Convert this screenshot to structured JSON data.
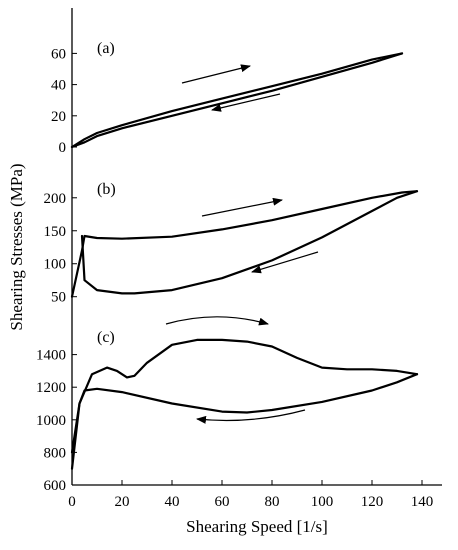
{
  "chart_data": {
    "type": "line",
    "xlabel": "Shearing Speed [1/s]",
    "ylabel": "Shearing Stresses (MPa)",
    "xlim": [
      0,
      150
    ],
    "x_ticks": [
      "0",
      "20",
      "40",
      "60",
      "80",
      "100",
      "120",
      "140"
    ],
    "grid": false,
    "panels": [
      {
        "label": "(a)",
        "ylim": [
          0,
          75
        ],
        "y_ticks": [
          "0",
          "20",
          "40",
          "60"
        ],
        "arrows": [
          "right",
          "left"
        ],
        "series": [
          {
            "direction": "increasing",
            "x": [
              0,
              5,
              10,
              20,
              40,
              60,
              80,
              100,
              120,
              132
            ],
            "y": [
              0,
              5,
              9,
              14,
              23,
              31,
              39,
              47,
              56,
              60
            ]
          },
          {
            "direction": "decreasing",
            "x": [
              132,
              120,
              100,
              80,
              60,
              40,
              20,
              10,
              5,
              0
            ],
            "y": [
              60,
              54,
              45,
              36,
              28,
              20,
              12,
              7,
              3,
              0
            ]
          }
        ]
      },
      {
        "label": "(b)",
        "ylim": [
          45,
          230
        ],
        "y_ticks": [
          "50",
          "100",
          "150",
          "200"
        ],
        "arrows": [
          "right",
          "left"
        ],
        "series": [
          {
            "direction": "increasing",
            "x": [
              0,
              4,
              5,
              10,
              20,
              40,
              60,
              80,
              100,
              120,
              132,
              138
            ],
            "y": [
              50,
              120,
              142,
              139,
              138,
              141,
              152,
              166,
              183,
              200,
              208,
              210
            ]
          },
          {
            "direction": "decreasing",
            "x": [
              138,
              130,
              120,
              100,
              80,
              60,
              40,
              25,
              20,
              10,
              5,
              4
            ],
            "y": [
              210,
              200,
              180,
              140,
              105,
              78,
              60,
              55,
              55,
              60,
              75,
              142
            ]
          }
        ]
      },
      {
        "label": "(c)",
        "ylim": [
          600,
          1600
        ],
        "y_ticks": [
          "600",
          "800",
          "1000",
          "1200",
          "1400"
        ],
        "arrows": [
          "right",
          "left"
        ],
        "series": [
          {
            "direction": "increasing",
            "x": [
              0,
              3,
              8,
              14,
              18,
              22,
              25,
              30,
              40,
              50,
              60,
              70,
              80,
              90,
              100,
              110,
              120,
              130,
              138
            ],
            "y": [
              700,
              1100,
              1280,
              1320,
              1300,
              1260,
              1270,
              1350,
              1460,
              1490,
              1490,
              1480,
              1450,
              1380,
              1320,
              1310,
              1310,
              1300,
              1280
            ]
          },
          {
            "direction": "decreasing",
            "x": [
              138,
              130,
              120,
              100,
              80,
              70,
              60,
              40,
              20,
              10,
              5,
              3,
              0
            ],
            "y": [
              1280,
              1230,
              1180,
              1110,
              1060,
              1045,
              1050,
              1100,
              1170,
              1190,
              1180,
              1100,
              800
            ]
          }
        ]
      }
    ]
  }
}
